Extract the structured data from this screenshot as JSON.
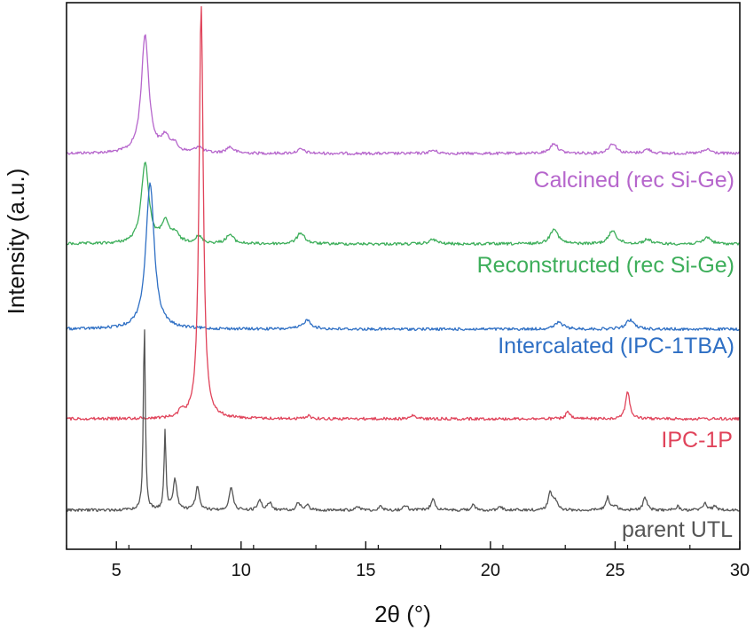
{
  "chart_data": {
    "type": "line",
    "xlabel": "2θ (°)",
    "ylabel": "Intensity (a.u.)",
    "xlim": [
      3,
      30
    ],
    "xticks": [
      5,
      10,
      15,
      20,
      25,
      30
    ],
    "y_units": "arbitrary (offset, normalized)",
    "grid": false,
    "legend": "labels placed on the right above each trace",
    "series": [
      {
        "name": "Calcined (rec Si-Ge)",
        "color": "#b666cc",
        "peaks": [
          {
            "x": 6.15,
            "height": 0.58
          },
          {
            "x": 6.95,
            "height": 0.07
          },
          {
            "x": 7.3,
            "height": 0.04
          },
          {
            "x": 8.3,
            "height": 0.03
          },
          {
            "x": 9.55,
            "height": 0.03
          },
          {
            "x": 12.4,
            "height": 0.02
          },
          {
            "x": 17.7,
            "height": 0.015
          },
          {
            "x": 22.55,
            "height": 0.05
          },
          {
            "x": 24.9,
            "height": 0.05
          },
          {
            "x": 26.3,
            "height": 0.02
          },
          {
            "x": 28.7,
            "height": 0.02
          }
        ]
      },
      {
        "name": "Reconstructed (rec Si-Ge)",
        "color": "#3dae5a",
        "peaks": [
          {
            "x": 6.15,
            "height": 0.36
          },
          {
            "x": 6.95,
            "height": 0.09
          },
          {
            "x": 7.35,
            "height": 0.04
          },
          {
            "x": 8.3,
            "height": 0.03
          },
          {
            "x": 9.55,
            "height": 0.04
          },
          {
            "x": 12.4,
            "height": 0.05
          },
          {
            "x": 17.7,
            "height": 0.02
          },
          {
            "x": 22.55,
            "height": 0.07
          },
          {
            "x": 24.9,
            "height": 0.06
          },
          {
            "x": 26.3,
            "height": 0.02
          },
          {
            "x": 28.7,
            "height": 0.03
          }
        ]
      },
      {
        "name": "Intercalated (IPC-1TBA)",
        "color": "#2e6fc4",
        "peaks": [
          {
            "x": 6.35,
            "height": 0.65
          },
          {
            "x": 12.65,
            "height": 0.04
          },
          {
            "x": 22.75,
            "height": 0.03
          },
          {
            "x": 25.6,
            "height": 0.04
          }
        ]
      },
      {
        "name": "IPC-1P",
        "color": "#e0435a",
        "peaks": [
          {
            "x": 8.4,
            "height": 1.8
          },
          {
            "x": 7.6,
            "height": 0.03
          },
          {
            "x": 12.7,
            "height": 0.015
          },
          {
            "x": 16.9,
            "height": 0.015
          },
          {
            "x": 23.1,
            "height": 0.03
          },
          {
            "x": 25.5,
            "height": 0.12
          }
        ]
      },
      {
        "name": "parent UTL",
        "color": "#555555",
        "peaks": [
          {
            "x": 6.12,
            "height": 0.75
          },
          {
            "x": 6.95,
            "height": 0.31
          },
          {
            "x": 7.35,
            "height": 0.12
          },
          {
            "x": 8.25,
            "height": 0.09
          },
          {
            "x": 9.6,
            "height": 0.09
          },
          {
            "x": 10.75,
            "height": 0.04
          },
          {
            "x": 11.15,
            "height": 0.03
          },
          {
            "x": 12.3,
            "height": 0.03
          },
          {
            "x": 12.65,
            "height": 0.02
          },
          {
            "x": 14.7,
            "height": 0.015
          },
          {
            "x": 15.6,
            "height": 0.015
          },
          {
            "x": 16.6,
            "height": 0.02
          },
          {
            "x": 17.7,
            "height": 0.05
          },
          {
            "x": 19.3,
            "height": 0.02
          },
          {
            "x": 20.4,
            "height": 0.015
          },
          {
            "x": 22.4,
            "height": 0.07
          },
          {
            "x": 22.6,
            "height": 0.04
          },
          {
            "x": 24.7,
            "height": 0.05
          },
          {
            "x": 25.0,
            "height": 0.02
          },
          {
            "x": 26.2,
            "height": 0.05
          },
          {
            "x": 27.5,
            "height": 0.015
          },
          {
            "x": 28.6,
            "height": 0.03
          },
          {
            "x": 29.0,
            "height": 0.015
          }
        ]
      }
    ]
  }
}
